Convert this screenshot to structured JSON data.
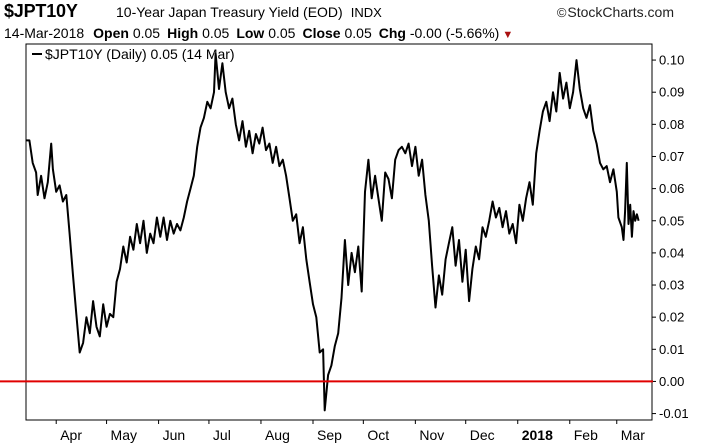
{
  "header": {
    "symbol": "$JPT10Y",
    "description": "10-Year Japan Treasury Yield (EOD)",
    "exchange": "INDX",
    "brand": "StockCharts.com",
    "brand_prefix": "©",
    "date": "14-Mar-2018",
    "open_label": "Open",
    "open": "0.05",
    "high_label": "High",
    "high": "0.05",
    "low_label": "Low",
    "low": "0.05",
    "close_label": "Close",
    "close": "0.05",
    "chg_label": "Chg",
    "chg": "-0.00 (-5.66%)",
    "chg_arrow": "▼"
  },
  "legend": {
    "text": "$JPT10Y (Daily) 0.05 (14 Mar)"
  },
  "colors": {
    "line": "#000000",
    "reference_line": "#e00000",
    "frame": "#000000",
    "arrow": "#a11111"
  },
  "chart_data": {
    "type": "line",
    "legend_placement": "top-left",
    "grid": false,
    "ylim": [
      -0.012,
      0.105
    ],
    "xlim": [
      "2017-03-14",
      "2018-03-22"
    ],
    "x_ticks": [
      {
        "label": "Apr",
        "date": "2017-04-01",
        "bold": false
      },
      {
        "label": "May",
        "date": "2017-05-01",
        "bold": false
      },
      {
        "label": "Jun",
        "date": "2017-06-01",
        "bold": false
      },
      {
        "label": "Jul",
        "date": "2017-07-01",
        "bold": false
      },
      {
        "label": "Aug",
        "date": "2017-08-01",
        "bold": false
      },
      {
        "label": "Sep",
        "date": "2017-09-01",
        "bold": false
      },
      {
        "label": "Oct",
        "date": "2017-10-01",
        "bold": false
      },
      {
        "label": "Nov",
        "date": "2017-11-01",
        "bold": false
      },
      {
        "label": "Dec",
        "date": "2017-12-01",
        "bold": false
      },
      {
        "label": "2018",
        "date": "2018-01-01",
        "bold": true
      },
      {
        "label": "Feb",
        "date": "2018-02-01",
        "bold": false
      },
      {
        "label": "Mar",
        "date": "2018-03-01",
        "bold": false
      }
    ],
    "y_ticks": [
      {
        "label": "0.10",
        "value": 0.1
      },
      {
        "label": "0.09",
        "value": 0.09
      },
      {
        "label": "0.08",
        "value": 0.08
      },
      {
        "label": "0.07",
        "value": 0.07
      },
      {
        "label": "0.06",
        "value": 0.06
      },
      {
        "label": "0.05",
        "value": 0.05
      },
      {
        "label": "0.04",
        "value": 0.04
      },
      {
        "label": "0.03",
        "value": 0.03
      },
      {
        "label": "0.02",
        "value": 0.02
      },
      {
        "label": "0.01",
        "value": 0.01
      },
      {
        "label": "0.00",
        "value": 0.0
      },
      {
        "label": "-0.01",
        "value": -0.01
      }
    ],
    "reference_line": {
      "y": 0.0
    },
    "series": [
      {
        "name": "$JPT10Y",
        "points": [
          [
            "2017-03-14",
            0.075
          ],
          [
            "2017-03-16",
            0.075
          ],
          [
            "2017-03-18",
            0.068
          ],
          [
            "2017-03-20",
            0.065
          ],
          [
            "2017-03-21",
            0.058
          ],
          [
            "2017-03-23",
            0.064
          ],
          [
            "2017-03-25",
            0.057
          ],
          [
            "2017-03-27",
            0.062
          ],
          [
            "2017-03-29",
            0.074
          ],
          [
            "2017-03-30",
            0.066
          ],
          [
            "2017-04-01",
            0.059
          ],
          [
            "2017-04-03",
            0.061
          ],
          [
            "2017-04-05",
            0.056
          ],
          [
            "2017-04-07",
            0.058
          ],
          [
            "2017-04-09",
            0.046
          ],
          [
            "2017-04-11",
            0.033
          ],
          [
            "2017-04-13",
            0.021
          ],
          [
            "2017-04-15",
            0.009
          ],
          [
            "2017-04-17",
            0.012
          ],
          [
            "2017-04-19",
            0.02
          ],
          [
            "2017-04-21",
            0.015
          ],
          [
            "2017-04-23",
            0.025
          ],
          [
            "2017-04-25",
            0.017
          ],
          [
            "2017-04-27",
            0.014
          ],
          [
            "2017-04-29",
            0.024
          ],
          [
            "2017-05-01",
            0.017
          ],
          [
            "2017-05-03",
            0.021
          ],
          [
            "2017-05-05",
            0.02
          ],
          [
            "2017-05-07",
            0.031
          ],
          [
            "2017-05-09",
            0.035
          ],
          [
            "2017-05-11",
            0.042
          ],
          [
            "2017-05-13",
            0.037
          ],
          [
            "2017-05-15",
            0.045
          ],
          [
            "2017-05-17",
            0.041
          ],
          [
            "2017-05-19",
            0.049
          ],
          [
            "2017-05-21",
            0.043
          ],
          [
            "2017-05-23",
            0.05
          ],
          [
            "2017-05-25",
            0.04
          ],
          [
            "2017-05-27",
            0.046
          ],
          [
            "2017-05-29",
            0.043
          ],
          [
            "2017-05-31",
            0.051
          ],
          [
            "2017-06-02",
            0.045
          ],
          [
            "2017-06-04",
            0.051
          ],
          [
            "2017-06-06",
            0.044
          ],
          [
            "2017-06-08",
            0.05
          ],
          [
            "2017-06-10",
            0.046
          ],
          [
            "2017-06-12",
            0.049
          ],
          [
            "2017-06-14",
            0.047
          ],
          [
            "2017-06-16",
            0.051
          ],
          [
            "2017-06-18",
            0.056
          ],
          [
            "2017-06-20",
            0.06
          ],
          [
            "2017-06-22",
            0.064
          ],
          [
            "2017-06-24",
            0.073
          ],
          [
            "2017-06-26",
            0.079
          ],
          [
            "2017-06-28",
            0.082
          ],
          [
            "2017-06-30",
            0.087
          ],
          [
            "2017-07-02",
            0.085
          ],
          [
            "2017-07-04",
            0.09
          ],
          [
            "2017-07-05",
            0.102
          ],
          [
            "2017-07-07",
            0.091
          ],
          [
            "2017-07-09",
            0.099
          ],
          [
            "2017-07-11",
            0.09
          ],
          [
            "2017-07-13",
            0.085
          ],
          [
            "2017-07-15",
            0.088
          ],
          [
            "2017-07-17",
            0.08
          ],
          [
            "2017-07-19",
            0.075
          ],
          [
            "2017-07-21",
            0.081
          ],
          [
            "2017-07-23",
            0.073
          ],
          [
            "2017-07-25",
            0.078
          ],
          [
            "2017-07-27",
            0.071
          ],
          [
            "2017-07-29",
            0.077
          ],
          [
            "2017-07-31",
            0.074
          ],
          [
            "2017-08-02",
            0.079
          ],
          [
            "2017-08-04",
            0.072
          ],
          [
            "2017-08-06",
            0.074
          ],
          [
            "2017-08-08",
            0.068
          ],
          [
            "2017-08-10",
            0.073
          ],
          [
            "2017-08-12",
            0.067
          ],
          [
            "2017-08-14",
            0.069
          ],
          [
            "2017-08-16",
            0.064
          ],
          [
            "2017-08-18",
            0.057
          ],
          [
            "2017-08-20",
            0.05
          ],
          [
            "2017-08-22",
            0.052
          ],
          [
            "2017-08-24",
            0.043
          ],
          [
            "2017-08-26",
            0.048
          ],
          [
            "2017-08-28",
            0.038
          ],
          [
            "2017-08-30",
            0.031
          ],
          [
            "2017-09-01",
            0.024
          ],
          [
            "2017-09-03",
            0.02
          ],
          [
            "2017-09-05",
            0.009
          ],
          [
            "2017-09-07",
            0.01
          ],
          [
            "2017-09-08",
            -0.009
          ],
          [
            "2017-09-10",
            0.002
          ],
          [
            "2017-09-12",
            0.005
          ],
          [
            "2017-09-14",
            0.011
          ],
          [
            "2017-09-16",
            0.015
          ],
          [
            "2017-09-18",
            0.026
          ],
          [
            "2017-09-20",
            0.044
          ],
          [
            "2017-09-22",
            0.03
          ],
          [
            "2017-09-24",
            0.04
          ],
          [
            "2017-09-26",
            0.034
          ],
          [
            "2017-09-28",
            0.042
          ],
          [
            "2017-09-30",
            0.028
          ],
          [
            "2017-10-02",
            0.059
          ],
          [
            "2017-10-04",
            0.069
          ],
          [
            "2017-10-06",
            0.057
          ],
          [
            "2017-10-08",
            0.064
          ],
          [
            "2017-10-10",
            0.057
          ],
          [
            "2017-10-12",
            0.05
          ],
          [
            "2017-10-14",
            0.065
          ],
          [
            "2017-10-16",
            0.063
          ],
          [
            "2017-10-18",
            0.057
          ],
          [
            "2017-10-20",
            0.069
          ],
          [
            "2017-10-22",
            0.072
          ],
          [
            "2017-10-24",
            0.073
          ],
          [
            "2017-10-26",
            0.071
          ],
          [
            "2017-10-28",
            0.074
          ],
          [
            "2017-10-30",
            0.067
          ],
          [
            "2017-11-01",
            0.073
          ],
          [
            "2017-11-03",
            0.064
          ],
          [
            "2017-11-05",
            0.069
          ],
          [
            "2017-11-07",
            0.058
          ],
          [
            "2017-11-09",
            0.05
          ],
          [
            "2017-11-11",
            0.036
          ],
          [
            "2017-11-13",
            0.023
          ],
          [
            "2017-11-15",
            0.033
          ],
          [
            "2017-11-17",
            0.027
          ],
          [
            "2017-11-19",
            0.038
          ],
          [
            "2017-11-21",
            0.043
          ],
          [
            "2017-11-23",
            0.048
          ],
          [
            "2017-11-25",
            0.036
          ],
          [
            "2017-11-27",
            0.044
          ],
          [
            "2017-11-29",
            0.031
          ],
          [
            "2017-12-01",
            0.041
          ],
          [
            "2017-12-03",
            0.025
          ],
          [
            "2017-12-05",
            0.035
          ],
          [
            "2017-12-07",
            0.042
          ],
          [
            "2017-12-09",
            0.038
          ],
          [
            "2017-12-11",
            0.048
          ],
          [
            "2017-12-13",
            0.045
          ],
          [
            "2017-12-15",
            0.05
          ],
          [
            "2017-12-17",
            0.056
          ],
          [
            "2017-12-19",
            0.051
          ],
          [
            "2017-12-21",
            0.054
          ],
          [
            "2017-12-23",
            0.048
          ],
          [
            "2017-12-25",
            0.053
          ],
          [
            "2017-12-27",
            0.046
          ],
          [
            "2017-12-29",
            0.049
          ],
          [
            "2017-12-31",
            0.043
          ],
          [
            "2018-01-02",
            0.055
          ],
          [
            "2018-01-04",
            0.05
          ],
          [
            "2018-01-06",
            0.057
          ],
          [
            "2018-01-08",
            0.062
          ],
          [
            "2018-01-10",
            0.055
          ],
          [
            "2018-01-12",
            0.071
          ],
          [
            "2018-01-14",
            0.078
          ],
          [
            "2018-01-16",
            0.084
          ],
          [
            "2018-01-18",
            0.087
          ],
          [
            "2018-01-20",
            0.081
          ],
          [
            "2018-01-22",
            0.09
          ],
          [
            "2018-01-24",
            0.084
          ],
          [
            "2018-01-26",
            0.096
          ],
          [
            "2018-01-28",
            0.088
          ],
          [
            "2018-01-30",
            0.093
          ],
          [
            "2018-02-01",
            0.085
          ],
          [
            "2018-02-03",
            0.09
          ],
          [
            "2018-02-05",
            0.1
          ],
          [
            "2018-02-07",
            0.091
          ],
          [
            "2018-02-09",
            0.085
          ],
          [
            "2018-02-11",
            0.082
          ],
          [
            "2018-02-13",
            0.086
          ],
          [
            "2018-02-15",
            0.078
          ],
          [
            "2018-02-17",
            0.074
          ],
          [
            "2018-02-19",
            0.068
          ],
          [
            "2018-02-21",
            0.066
          ],
          [
            "2018-02-23",
            0.067
          ],
          [
            "2018-02-25",
            0.062
          ],
          [
            "2018-02-27",
            0.066
          ],
          [
            "2018-03-01",
            0.059
          ],
          [
            "2018-03-02",
            0.051
          ],
          [
            "2018-03-04",
            0.048
          ],
          [
            "2018-03-05",
            0.044
          ],
          [
            "2018-03-06",
            0.053
          ],
          [
            "2018-03-07",
            0.068
          ],
          [
            "2018-03-08",
            0.049
          ],
          [
            "2018-03-09",
            0.055
          ],
          [
            "2018-03-10",
            0.045
          ],
          [
            "2018-03-11",
            0.053
          ],
          [
            "2018-03-12",
            0.05
          ],
          [
            "2018-03-13",
            0.052
          ],
          [
            "2018-03-14",
            0.05
          ]
        ]
      }
    ]
  }
}
